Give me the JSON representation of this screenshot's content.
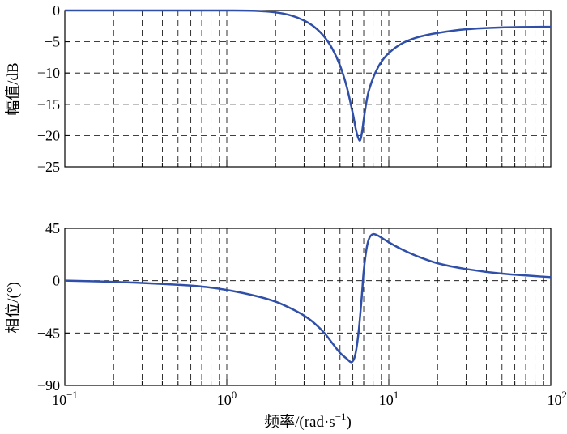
{
  "chart_data": [
    {
      "type": "line",
      "xscale": "log",
      "xlim": [
        0.1,
        100
      ],
      "ylim": [
        -25,
        0
      ],
      "ylabel": "幅值/dB",
      "xlabel": "",
      "grid": true,
      "yticks": [
        0,
        -5,
        -10,
        -15,
        -20,
        -25
      ],
      "ytick_labels": [
        "0",
        "−5",
        "−10",
        "−15",
        "−20",
        "−25"
      ],
      "line_color": "#2f4fa8",
      "series": [
        {
          "x": [
            0.1,
            0.2,
            0.5,
            1,
            1.5,
            2,
            2.5,
            3,
            3.5,
            4,
            4.5,
            5,
            5.5,
            6,
            6.3,
            6.6,
            6.8,
            7.0,
            7.2,
            7.5,
            8,
            8.5,
            9,
            10,
            12,
            15,
            20,
            30,
            50,
            100
          ],
          "y": [
            0,
            0,
            0,
            0,
            -0.05,
            -0.3,
            -0.8,
            -1.6,
            -2.7,
            -4.2,
            -6.2,
            -8.8,
            -12.2,
            -16.5,
            -19.3,
            -20.8,
            -19.8,
            -17.5,
            -15.3,
            -13.0,
            -10.8,
            -9.3,
            -8.2,
            -6.8,
            -5.3,
            -4.3,
            -3.6,
            -3.0,
            -2.7,
            -2.6
          ]
        }
      ]
    },
    {
      "type": "line",
      "xscale": "log",
      "xlim": [
        0.1,
        100
      ],
      "ylim": [
        -90,
        45
      ],
      "ylabel": "相位/(°)",
      "xlabel": "频率/(rad·s⁻¹)",
      "grid": true,
      "yticks": [
        45,
        0,
        -45,
        -90
      ],
      "ytick_labels": [
        "45",
        "0",
        "−45",
        "−90"
      ],
      "line_color": "#2f4fa8",
      "series": [
        {
          "x": [
            0.1,
            0.2,
            0.3,
            0.5,
            0.7,
            1,
            1.5,
            2,
            2.5,
            3,
            3.5,
            4,
            4.5,
            5,
            5.5,
            5.9,
            6.2,
            6.5,
            6.8,
            7.0,
            7.3,
            7.6,
            8.0,
            8.5,
            9,
            10,
            12,
            15,
            20,
            30,
            50,
            100
          ],
          "y": [
            0,
            -1,
            -2,
            -3.5,
            -5,
            -8,
            -13,
            -18,
            -24,
            -30,
            -37,
            -45,
            -54,
            -62,
            -67,
            -70,
            -64,
            -45,
            -15,
            8,
            28,
            37,
            40,
            39,
            37,
            33,
            27,
            21,
            15,
            10,
            6,
            3
          ]
        }
      ]
    }
  ],
  "x_ticks": {
    "decades": [
      0.1,
      1,
      10,
      100
    ],
    "labels": [
      {
        "base": "10",
        "exp": "−1"
      },
      {
        "base": "10",
        "exp": "0"
      },
      {
        "base": "10",
        "exp": "1"
      },
      {
        "base": "10",
        "exp": "2"
      }
    ]
  },
  "xlabel_parts": {
    "main": "频率/(rad·s",
    "exp": "−1",
    "close": ")"
  }
}
